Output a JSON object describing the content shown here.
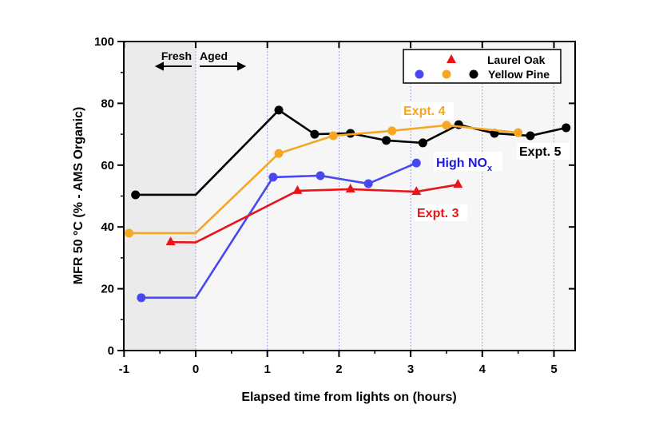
{
  "chart_data": {
    "type": "line",
    "xlabel": "Elapsed time from lights on (hours)",
    "ylabel": "MFR 50 °C (% - AMS Organic)",
    "xlim": [
      -1,
      5.3
    ],
    "ylim": [
      0,
      100
    ],
    "xticks": [
      "-1",
      "0",
      "1",
      "2",
      "3",
      "4",
      "5"
    ],
    "yticks": [
      "0",
      "20",
      "40",
      "60",
      "80",
      "100"
    ],
    "grid": "vertical dotted at integer hours",
    "shaded_region": [
      -1,
      0
    ],
    "legend": {
      "placement": "top-right",
      "entries": [
        {
          "label": "Laurel Oak",
          "markers": [
            "triangle-red"
          ]
        },
        {
          "label": "Yellow Pine",
          "markers": [
            "circle-blue",
            "circle-orange",
            "circle-black"
          ]
        }
      ]
    },
    "annotations": {
      "fresh": "Fresh",
      "aged": "Aged"
    },
    "series": [
      {
        "name": "Expt. 5",
        "color": "#000000",
        "marker": "circle",
        "x": [
          -0.84,
          0,
          1.16,
          1.66,
          2.16,
          2.66,
          3.17,
          3.67,
          4.17,
          4.67,
          5.17
        ],
        "y": [
          50.4,
          50.4,
          77.8,
          70.0,
          70.3,
          68.0,
          67.2,
          73.1,
          70.3,
          69.5,
          72.1
        ],
        "marked": [
          1,
          0,
          1,
          1,
          1,
          1,
          1,
          1,
          1,
          1,
          1
        ]
      },
      {
        "name": "Expt. 4",
        "color": "#f5a623",
        "marker": "circle",
        "x": [
          -0.93,
          0,
          1.16,
          1.92,
          2.74,
          3.5,
          4.5
        ],
        "y": [
          38.0,
          38.0,
          63.8,
          69.5,
          71.1,
          72.9,
          70.5
        ],
        "marked": [
          1,
          0,
          1,
          1,
          1,
          1,
          1
        ]
      },
      {
        "name": "High NOx",
        "color": "#4848f0",
        "marker": "circle",
        "x": [
          -0.76,
          0,
          1.08,
          1.74,
          2.41,
          3.08
        ],
        "y": [
          17.1,
          17.1,
          56.1,
          56.6,
          54.0,
          60.7
        ],
        "marked": [
          1,
          0,
          1,
          1,
          1,
          1
        ]
      },
      {
        "name": "Expt. 3",
        "color": "#e8141a",
        "marker": "triangle",
        "x": [
          -0.35,
          0,
          1.42,
          2.16,
          3.08,
          3.66
        ],
        "y": [
          35.1,
          35.0,
          51.7,
          52.2,
          51.4,
          53.7
        ],
        "marked": [
          1,
          0,
          1,
          1,
          1,
          1
        ]
      }
    ]
  }
}
